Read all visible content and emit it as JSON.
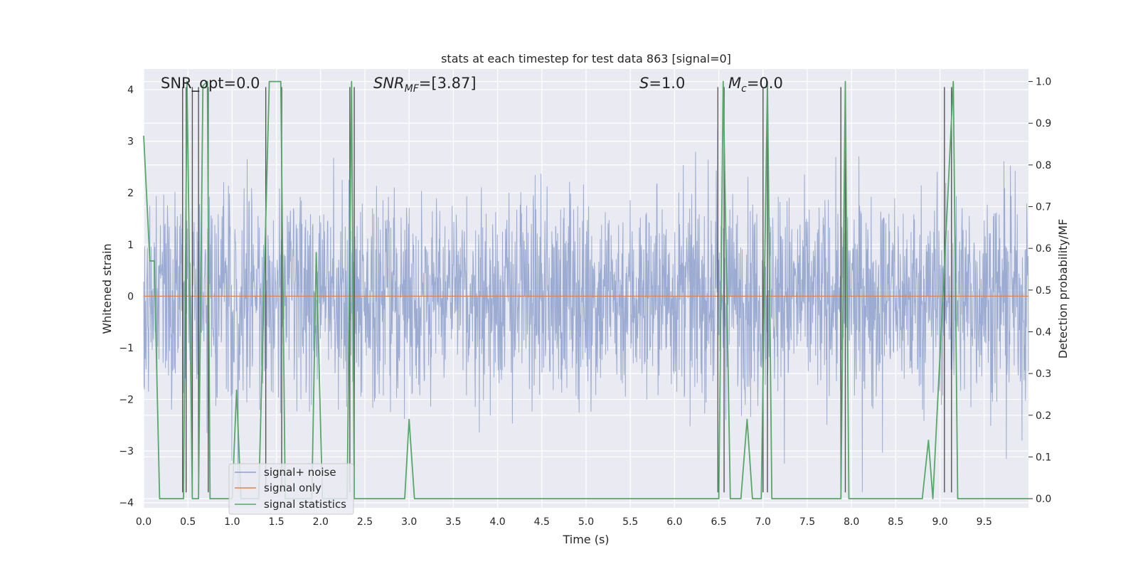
{
  "chart_data": {
    "type": "line",
    "title": "stats at each timestep for test data 863 [signal=0]",
    "xlabel": "Time (s)",
    "ylabel": "Whitened strain",
    "y2label": "Detection probability/MF",
    "xlim": [
      0,
      10
    ],
    "ylim": [
      -4.1,
      4.4
    ],
    "y2lim": [
      -0.022,
      1.03
    ],
    "xticks": [
      "0.0",
      "0.5",
      "1.0",
      "1.5",
      "2.0",
      "2.5",
      "3.0",
      "3.5",
      "4.0",
      "4.5",
      "5.0",
      "5.5",
      "6.0",
      "6.5",
      "7.0",
      "7.5",
      "8.0",
      "8.5",
      "9.0",
      "9.5"
    ],
    "yticks": [
      "−4",
      "−3",
      "−2",
      "−1",
      "0",
      "1",
      "2",
      "3",
      "4"
    ],
    "y2ticks": [
      "0.0",
      "0.1",
      "0.2",
      "0.3",
      "0.4",
      "0.5",
      "0.6",
      "0.7",
      "0.8",
      "0.9",
      "1.0"
    ],
    "grid": true,
    "legend_position": "lower-left",
    "annotations": {
      "snr_opt": "SNR_opt=0.0",
      "snr_mf_main": "SNR",
      "snr_mf_sub": "MF",
      "snr_mf_value": "=[3.87]",
      "s_sym": "S",
      "s_value": "=1.0",
      "mc_sym": "M",
      "mc_sub": "c",
      "mc_value": "=0.0"
    },
    "series": [
      {
        "name": "signal+ noise",
        "axis": "left",
        "color": "#8da0cb",
        "style": "dense noise, roughly -1.5 to 1.7 with spikes to about ±3.4",
        "x_range": [
          0,
          10
        ],
        "y_envelope": [
          -3.8,
          3.4
        ]
      },
      {
        "name": "signal only",
        "axis": "left",
        "color": "#dd8452",
        "x": [
          0,
          10
        ],
        "y": [
          0,
          0
        ]
      },
      {
        "name": "signal statistics",
        "axis": "right",
        "color": "#55a868",
        "x": [
          0.0,
          0.07,
          0.12,
          0.18,
          0.45,
          0.49,
          0.55,
          0.62,
          0.67,
          0.72,
          0.75,
          0.87,
          1.0,
          1.05,
          1.1,
          1.2,
          1.3,
          1.42,
          1.55,
          1.6,
          1.7,
          1.85,
          1.9,
          1.95,
          2.02,
          2.1,
          2.3,
          2.35,
          2.38,
          2.42,
          2.5,
          2.95,
          3.0,
          3.06,
          4.0,
          5.0,
          6.0,
          6.5,
          6.55,
          6.63,
          6.75,
          6.82,
          6.88,
          6.98,
          7.05,
          7.1,
          7.5,
          7.88,
          7.93,
          7.97,
          8.0,
          8.5,
          8.8,
          8.87,
          8.92,
          9.08,
          9.15,
          9.2,
          9.5,
          10.0
        ],
        "y": [
          0.87,
          0.57,
          0.57,
          0.0,
          0.0,
          1.0,
          0.0,
          0.0,
          0.99,
          1.0,
          0.0,
          0.0,
          0.0,
          0.26,
          0.0,
          0.0,
          0.0,
          1.0,
          1.0,
          0.0,
          0.0,
          0.0,
          0.0,
          0.59,
          0.0,
          0.0,
          0.0,
          1.0,
          0.0,
          0.0,
          0.0,
          0.0,
          0.19,
          0.0,
          0.0,
          0.0,
          0.0,
          0.0,
          1.0,
          0.0,
          0.0,
          0.19,
          0.0,
          0.0,
          1.0,
          0.0,
          0.0,
          0.0,
          1.0,
          0.0,
          0.0,
          0.0,
          0.0,
          0.14,
          0.0,
          0.69,
          1.0,
          0.0,
          0.0,
          0.0
        ]
      }
    ],
    "event_markers": {
      "color": "#555555",
      "x": [
        0.44,
        0.48,
        0.55,
        0.62,
        0.73,
        1.38,
        1.56,
        2.33,
        2.38,
        6.49,
        6.56,
        7.0,
        7.05,
        7.88,
        7.93,
        9.05,
        9.13
      ],
      "y_range": [
        -3.8,
        4.05
      ]
    }
  }
}
